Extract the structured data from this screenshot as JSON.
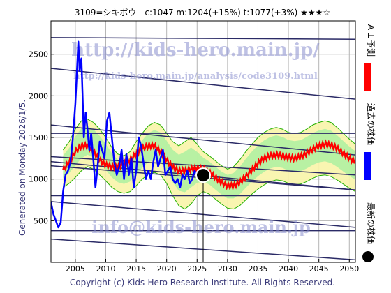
{
  "header": {
    "title": "3109=シキボウ　c:1047  m:1204(+15%)  t:1077(+3%)  ★★★☆"
  },
  "side_note": "Generated on Monday 2026/1/5.",
  "footer": {
    "copyright": "Copyright (c) Kids-Hero Research Institute. All Rights Reserved."
  },
  "watermarks": {
    "url": "http://kids-hero.main.jp/",
    "analysis_url": "http://kids-hero.main.jp/analysis/code3109.html",
    "email": "info@kids-hero.main.jp"
  },
  "legend": [
    {
      "label": "ＡＩ予測",
      "color": "#ff0000",
      "marker": "line"
    },
    {
      "label": "過去の株価",
      "color": "#0000ff",
      "marker": "line"
    },
    {
      "label": "最新の株価",
      "color": "#000000",
      "marker": "dot"
    }
  ],
  "colors": {
    "frame": "#000000",
    "grid": "#b4b4b4",
    "trend_line": "#2a2a66",
    "band_fill": "#a8f0a0",
    "band_fill_light": "#f8f4a8",
    "band_line": "#23b000",
    "past_price": "#0000ff",
    "forecast": "#ff0000",
    "latest_dot": "#000000"
  },
  "chart_data": {
    "type": "line",
    "title": "3109=シキボウ　c:1047  m:1204(+15%)  t:1077(+3%)  ★★★☆",
    "xlabel": "",
    "ylabel": "",
    "xlim": [
      2001,
      2051
    ],
    "ylim": [
      0,
      2900
    ],
    "x_ticks": [
      2005,
      2010,
      2015,
      2020,
      2025,
      2030,
      2035,
      2040,
      2045,
      2050
    ],
    "y_ticks": [
      500,
      1000,
      1500,
      2000,
      2500
    ],
    "grid": true,
    "latest": {
      "x": 2026.0,
      "y": 1047
    },
    "trend_lines": [
      {
        "x": [
          2001,
          2051
        ],
        "y": [
          2700,
          2680
        ]
      },
      {
        "x": [
          2001,
          2051
        ],
        "y": [
          2330,
          1960
        ]
      },
      {
        "x": [
          2001,
          2051
        ],
        "y": [
          1650,
          1290
        ]
      },
      {
        "x": [
          2001,
          2051
        ],
        "y": [
          1550,
          1550
        ]
      },
      {
        "x": [
          2001,
          2051
        ],
        "y": [
          1270,
          1050
        ]
      },
      {
        "x": [
          2001,
          2051
        ],
        "y": [
          1210,
          870
        ]
      },
      {
        "x": [
          2001,
          2051
        ],
        "y": [
          1160,
          870
        ]
      },
      {
        "x": [
          2001,
          2051
        ],
        "y": [
          800,
          800
        ]
      },
      {
        "x": [
          2001,
          2051
        ],
        "y": [
          730,
          420
        ]
      },
      {
        "x": [
          2001,
          2051
        ],
        "y": [
          380,
          380
        ]
      },
      {
        "x": [
          2001,
          2051
        ],
        "y": [
          280,
          30
        ]
      }
    ],
    "band": {
      "x": [
        2003,
        2004,
        2005,
        2006,
        2007,
        2008,
        2009,
        2010,
        2011,
        2012,
        2013,
        2014,
        2015,
        2016,
        2017,
        2018,
        2019,
        2020,
        2021,
        2022,
        2023,
        2024,
        2025,
        2026,
        2027,
        2028,
        2029,
        2030,
        2031,
        2032,
        2033,
        2034,
        2035,
        2036,
        2037,
        2038,
        2039,
        2040,
        2041,
        2042,
        2043,
        2044,
        2045,
        2046,
        2047,
        2048,
        2049,
        2050,
        2051
      ],
      "upper": [
        1350,
        1450,
        1600,
        1700,
        1720,
        1680,
        1600,
        1500,
        1380,
        1300,
        1280,
        1330,
        1450,
        1550,
        1640,
        1680,
        1650,
        1550,
        1450,
        1400,
        1450,
        1500,
        1420,
        1330,
        1280,
        1220,
        1160,
        1120,
        1150,
        1230,
        1330,
        1420,
        1500,
        1560,
        1600,
        1620,
        1600,
        1560,
        1550,
        1560,
        1600,
        1650,
        1680,
        1700,
        1680,
        1620,
        1550,
        1480,
        1420
      ],
      "lower": [
        900,
        950,
        1020,
        1100,
        1150,
        1120,
        1050,
        980,
        900,
        850,
        830,
        850,
        920,
        1000,
        1060,
        1080,
        1050,
        950,
        800,
        680,
        640,
        700,
        800,
        850,
        820,
        760,
        700,
        650,
        640,
        680,
        750,
        820,
        880,
        930,
        970,
        990,
        980,
        950,
        930,
        940,
        970,
        1010,
        1040,
        1050,
        1030,
        990,
        940,
        890,
        850
      ]
    },
    "series": [
      {
        "name": "過去の株価",
        "x": [
          2001.0,
          2001.4,
          2001.8,
          2002.2,
          2002.6,
          2003.0,
          2003.4,
          2003.8,
          2004.2,
          2004.6,
          2005.0,
          2005.3,
          2005.5,
          2005.7,
          2006.0,
          2006.2,
          2006.4,
          2006.7,
          2007.0,
          2007.3,
          2007.6,
          2008.0,
          2008.3,
          2008.6,
          2009.0,
          2009.4,
          2009.8,
          2010.2,
          2010.6,
          2011.0,
          2011.4,
          2011.8,
          2012.2,
          2012.6,
          2013.0,
          2013.4,
          2013.8,
          2014.2,
          2014.6,
          2015.0,
          2015.4,
          2015.8,
          2016.2,
          2016.6,
          2017.0,
          2017.4,
          2017.8,
          2018.2,
          2018.6,
          2019.0,
          2019.4,
          2019.8,
          2020.2,
          2020.6,
          2021.0,
          2021.4,
          2021.8,
          2022.2,
          2022.6,
          2023.0,
          2023.4,
          2023.8,
          2024.2,
          2024.6,
          2025.0,
          2025.4,
          2025.8
        ],
        "y": [
          720,
          580,
          500,
          420,
          480,
          850,
          1050,
          1100,
          1200,
          1500,
          1900,
          2350,
          2650,
          2300,
          2450,
          2000,
          1500,
          1800,
          1600,
          1350,
          1550,
          1200,
          900,
          1100,
          1450,
          1350,
          1250,
          1700,
          1800,
          1500,
          1200,
          1050,
          1150,
          1350,
          1000,
          1300,
          1050,
          1250,
          900,
          1100,
          1500,
          1400,
          1200,
          1000,
          1100,
          1000,
          1200,
          1350,
          1150,
          1250,
          1350,
          1050,
          1100,
          1150,
          1000,
          950,
          1000,
          900,
          1050,
          1000,
          1100,
          950,
          1000,
          1100,
          1050,
          1000,
          1047
        ]
      },
      {
        "name": "ＡＩ予測",
        "x": [
          2003,
          2004,
          2005,
          2006,
          2007,
          2008,
          2009,
          2010,
          2011,
          2012,
          2013,
          2014,
          2015,
          2016,
          2017,
          2018,
          2019,
          2020,
          2021,
          2022,
          2023,
          2024,
          2025,
          2026,
          2027,
          2028,
          2029,
          2030,
          2031,
          2032,
          2033,
          2034,
          2035,
          2036,
          2037,
          2038,
          2039,
          2040,
          2041,
          2042,
          2043,
          2044,
          2045,
          2046,
          2047,
          2048,
          2049,
          2050,
          2051
        ],
        "y": [
          1110,
          1200,
          1330,
          1400,
          1400,
          1330,
          1230,
          1170,
          1150,
          1150,
          1180,
          1230,
          1300,
          1370,
          1400,
          1400,
          1330,
          1230,
          1140,
          1100,
          1100,
          1120,
          1130,
          1120,
          1080,
          1020,
          960,
          920,
          920,
          960,
          1030,
          1110,
          1190,
          1250,
          1280,
          1290,
          1280,
          1260,
          1250,
          1270,
          1310,
          1360,
          1400,
          1420,
          1410,
          1370,
          1310,
          1250,
          1210
        ]
      }
    ]
  }
}
